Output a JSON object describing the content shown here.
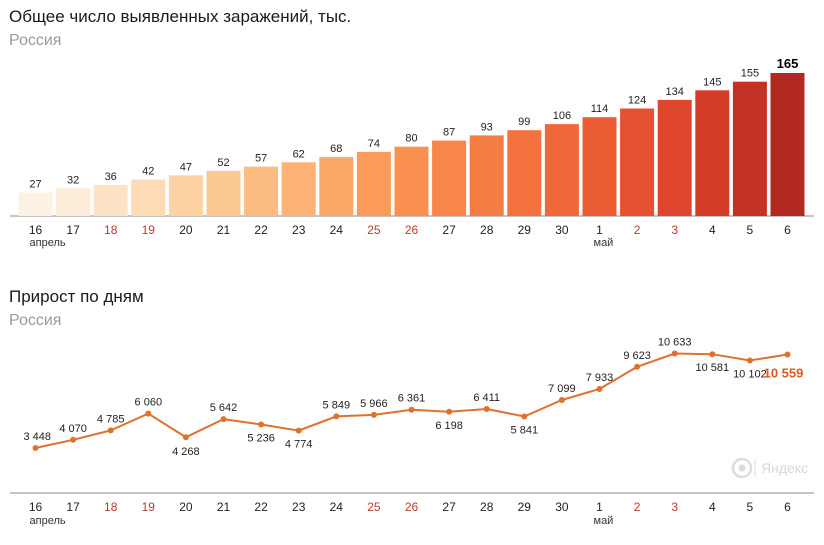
{
  "charts": {
    "total": {
      "title": "Общее число выявленных заражений, тыс.",
      "subtitle": "Россия"
    },
    "daily": {
      "title": "Прирост по дням",
      "subtitle": "Россия"
    }
  },
  "watermark": "Яндекс",
  "chart_data": [
    {
      "type": "bar",
      "title": "Общее число выявленных заражений, тыс.",
      "subtitle": "Россия",
      "categories": [
        "16",
        "17",
        "18",
        "19",
        "20",
        "21",
        "22",
        "23",
        "24",
        "25",
        "26",
        "27",
        "28",
        "29",
        "30",
        "1",
        "2",
        "3",
        "4",
        "5",
        "6"
      ],
      "month_labels": [
        {
          "index": 0,
          "label": "апрель"
        },
        {
          "index": 15,
          "label": "май"
        }
      ],
      "highlight_categories": [
        "18",
        "19",
        "25",
        "26",
        "2",
        "3"
      ],
      "values": [
        27,
        32,
        36,
        42,
        47,
        52,
        57,
        62,
        68,
        74,
        80,
        87,
        93,
        99,
        106,
        114,
        124,
        134,
        145,
        155,
        165
      ],
      "value_labels": [
        "27",
        "32",
        "36",
        "42",
        "47",
        "52",
        "57",
        "62",
        "68",
        "74",
        "80",
        "87",
        "93",
        "99",
        "106",
        "114",
        "124",
        "134",
        "145",
        "155",
        "165"
      ],
      "bar_colors": [
        "#fdf1e4",
        "#fdecd8",
        "#fde3c6",
        "#fddbb4",
        "#fdd2a3",
        "#fcc891",
        "#fcbd82",
        "#fbb274",
        "#fba766",
        "#fa9b5a",
        "#f99050",
        "#f78648",
        "#f57c42",
        "#f3723d",
        "#f06739",
        "#ec5d35",
        "#e55131",
        "#de462d",
        "#d23c29",
        "#c43226",
        "#b22822"
      ],
      "ylim": [
        0,
        165
      ]
    },
    {
      "type": "line",
      "title": "Прирост по дням",
      "subtitle": "Россия",
      "categories": [
        "16",
        "17",
        "18",
        "19",
        "20",
        "21",
        "22",
        "23",
        "24",
        "25",
        "26",
        "27",
        "28",
        "29",
        "30",
        "1",
        "2",
        "3",
        "4",
        "5",
        "6"
      ],
      "month_labels": [
        {
          "index": 0,
          "label": "апрель"
        },
        {
          "index": 15,
          "label": "май"
        }
      ],
      "highlight_categories": [
        "18",
        "19",
        "25",
        "26",
        "2",
        "3"
      ],
      "values": [
        3448,
        4070,
        4785,
        6060,
        4268,
        5642,
        5236,
        4774,
        5849,
        5966,
        6361,
        6198,
        6411,
        5841,
        7099,
        7933,
        9623,
        10633,
        10581,
        10102,
        10559
      ],
      "value_labels": [
        "3 448",
        "4 070",
        "4 785",
        "6 060",
        "4 268",
        "5 642",
        "5 236",
        "4 774",
        "5 849",
        "5 966",
        "6 361",
        "6 198",
        "6 411",
        "5 841",
        "7 099",
        "7 933",
        "9 623",
        "10 633",
        "10 581",
        "10 102",
        "10 559"
      ],
      "line_color": "#e0712c",
      "last_label_color": "#e0571f",
      "ylim": [
        3448,
        10633
      ]
    }
  ]
}
